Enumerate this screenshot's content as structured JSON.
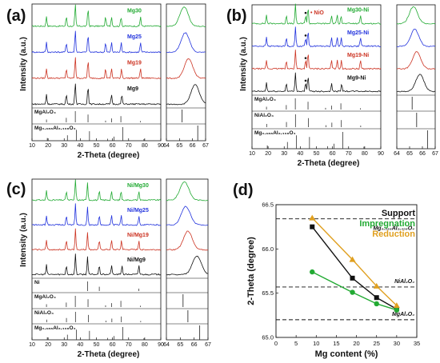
{
  "colors": {
    "black": "#111111",
    "blue": "#2233dd",
    "green": "#22aa33",
    "red": "#cc3322",
    "orange": "#e0a020",
    "ref": "#555555"
  },
  "chart_data": [
    {
      "type": "line",
      "panel_label": "(a)",
      "xlabel": "2-Theta (degree)",
      "ylabel": "Intensity (a.u.)",
      "xlim": [
        10,
        90
      ],
      "xticks": [
        "10",
        "20",
        "30",
        "40",
        "50",
        "60",
        "70",
        "80",
        "90"
      ],
      "zoom_xlim": [
        64,
        67
      ],
      "zoom_xticks": [
        "64",
        "65",
        "66",
        "67"
      ],
      "series": [
        {
          "name": "Mg30",
          "peaks": [
            19,
            31.3,
            36.9,
            44.8,
            55.7,
            59.4,
            65.3,
            77.4
          ],
          "zoom_peak": 65.35
        },
        {
          "name": "Mg25",
          "peaks": [
            19,
            31.3,
            36.9,
            44.8,
            55.7,
            59.4,
            65.4,
            77.4
          ],
          "zoom_peak": 65.45
        },
        {
          "name": "Mg19",
          "peaks": [
            19,
            31.3,
            36.9,
            44.8,
            55.7,
            59.4,
            65.6,
            77.4
          ],
          "zoom_peak": 65.7
        },
        {
          "name": "Mg9",
          "peaks": [
            19,
            31.3,
            36.9,
            44.8,
            59.4,
            65.8
          ],
          "zoom_peak": 66.2
        }
      ],
      "references": [
        {
          "label": "MgAl₂O₄",
          "lines": [
            19,
            31.3,
            36.9,
            44.8,
            55.7,
            59.4,
            65.2,
            77.3
          ],
          "heights": [
            0.25,
            0.4,
            1,
            0.7,
            0.15,
            0.35,
            0.55,
            0.12
          ],
          "zoom_line": 65.2
        },
        {
          "label": "Mg₀.₃₈₈Al₂.₄₀₈O₄",
          "lines": [
            19.5,
            32,
            37.6,
            45.7,
            57,
            60.9,
            66.4,
            79.5
          ],
          "heights": [
            0.2,
            0.4,
            0.8,
            0.7,
            0.15,
            0.3,
            1,
            0.12
          ],
          "zoom_line": 66.4
        }
      ]
    },
    {
      "type": "line",
      "panel_label": "(b)",
      "xlabel": "2-Theta (degree)",
      "ylabel": "Intensity (a.u.)",
      "xlim": [
        10,
        90
      ],
      "xticks": [
        "10",
        "20",
        "30",
        "40",
        "50",
        "60",
        "70",
        "80",
        "90"
      ],
      "zoom_xlim": [
        64,
        67
      ],
      "zoom_xticks": [
        "64",
        "65",
        "66",
        "67"
      ],
      "annotation": "• NiO",
      "series": [
        {
          "name": "Mg30-Ni",
          "peaks": [
            19,
            31.3,
            37,
            43.3,
            44.8,
            59.4,
            62.9,
            65.3,
            77.4
          ],
          "zoom_peak": 65.3
        },
        {
          "name": "Mg25-Ni",
          "peaks": [
            19,
            31.3,
            37,
            43.3,
            44.8,
            59.4,
            62.9,
            65.4,
            77.4
          ],
          "zoom_peak": 65.4
        },
        {
          "name": "Mg19-Ni",
          "peaks": [
            19,
            31.3,
            37,
            43.3,
            44.8,
            59.4,
            62.9,
            65.5,
            77.4
          ],
          "zoom_peak": 65.55
        },
        {
          "name": "Mg9-Ni",
          "peaks": [
            19,
            31.3,
            37,
            43.3,
            44.8,
            59.4,
            65.7
          ],
          "zoom_peak": 65.8
        }
      ],
      "references": [
        {
          "label": "MgAl₂O₄",
          "lines": [
            19,
            31.3,
            36.9,
            44.8,
            55.7,
            59.4,
            65.2,
            77.3
          ],
          "heights": [
            0.25,
            0.4,
            1,
            0.7,
            0.15,
            0.35,
            0.55,
            0.12
          ],
          "zoom_line": 65.2
        },
        {
          "label": "NiAl₂O₄",
          "lines": [
            19.1,
            31.4,
            37,
            45,
            55.9,
            59.6,
            65.5,
            77.5
          ],
          "heights": [
            0.25,
            0.4,
            1,
            0.7,
            0.15,
            0.35,
            0.55,
            0.12
          ],
          "zoom_line": 65.55
        },
        {
          "label": "Mg₀.₃₈₈Al₂.₄₀₈O₄",
          "lines": [
            19.5,
            32,
            37.6,
            45.7,
            57,
            60.9,
            66.4,
            79.5
          ],
          "heights": [
            0.2,
            0.4,
            0.8,
            0.7,
            0.15,
            0.3,
            1,
            0.12
          ],
          "zoom_line": 66.4
        }
      ]
    },
    {
      "type": "line",
      "panel_label": "(c)",
      "xlabel": "2-Theta (degree)",
      "ylabel": "Intensity (a.u.)",
      "xlim": [
        10,
        90
      ],
      "xticks": [
        "10",
        "20",
        "30",
        "40",
        "50",
        "60",
        "70",
        "80",
        "90"
      ],
      "zoom_xlim": [
        64,
        67
      ],
      "zoom_xticks": [
        "64",
        "65",
        "66",
        "67"
      ],
      "series": [
        {
          "name": "Ni/Mg30",
          "peaks": [
            19,
            31.3,
            37,
            44.5,
            51.8,
            59.4,
            65.3,
            76.4
          ],
          "zoom_peak": 65.3
        },
        {
          "name": "Ni/Mg25",
          "peaks": [
            19,
            31.3,
            37,
            44.5,
            51.8,
            59.4,
            65.4,
            76.4
          ],
          "zoom_peak": 65.4
        },
        {
          "name": "Ni/Mg19",
          "peaks": [
            19,
            31.3,
            37,
            44.5,
            51.8,
            59.4,
            65.6,
            76.4
          ],
          "zoom_peak": 65.55
        },
        {
          "name": "Ni/Mg9",
          "peaks": [
            19,
            31.3,
            37,
            44.5,
            51.8,
            59.4,
            65.9,
            76.4
          ],
          "zoom_peak": 66.2
        }
      ],
      "references": [
        {
          "label": "Ni",
          "lines": [
            44.5,
            51.8,
            76.4
          ],
          "heights": [
            1,
            0.45,
            0.25
          ],
          "zoom_line": null
        },
        {
          "label": "MgAl₂O₄",
          "lines": [
            19,
            31.3,
            36.9,
            44.8,
            55.7,
            59.4,
            65.2,
            77.3
          ],
          "heights": [
            0.25,
            0.4,
            1,
            0.7,
            0.15,
            0.35,
            0.55,
            0.12
          ],
          "zoom_line": 65.2
        },
        {
          "label": "NiAl₂O₄",
          "lines": [
            19.1,
            31.4,
            37,
            45,
            55.9,
            59.6,
            65.5,
            77.5
          ],
          "heights": [
            0.25,
            0.4,
            1,
            0.7,
            0.15,
            0.35,
            0.55,
            0.12
          ],
          "zoom_line": 65.55
        },
        {
          "label": "Mg₀.₃₈₈Al₂.₄₀₈O₄",
          "lines": [
            19.5,
            32,
            37.6,
            45.7,
            57,
            60.9,
            66.4,
            79.5
          ],
          "heights": [
            0.2,
            0.4,
            0.8,
            0.7,
            0.15,
            0.3,
            1,
            0.12
          ],
          "zoom_line": 66.4
        }
      ]
    },
    {
      "type": "scatter",
      "panel_label": "(d)",
      "xlabel": "Mg content (%)",
      "ylabel": "2-Theta (degree)",
      "xlim": [
        0,
        35
      ],
      "ylim": [
        65.0,
        66.5
      ],
      "xticks": [
        "0",
        "5",
        "10",
        "15",
        "20",
        "25",
        "30",
        "35"
      ],
      "yticks": [
        "65.0",
        "65.5",
        "66.0",
        "66.5"
      ],
      "x": [
        9,
        19,
        25,
        30
      ],
      "series": [
        {
          "name": "Support",
          "marker": "square",
          "values": [
            66.25,
            65.67,
            65.45,
            65.32
          ]
        },
        {
          "name": "Impregnation",
          "marker": "circle",
          "values": [
            65.74,
            65.51,
            65.38,
            65.31
          ]
        },
        {
          "name": "Reduction",
          "marker": "triangle",
          "values": [
            66.35,
            65.88,
            65.58,
            65.36
          ]
        }
      ],
      "reference_lines": [
        {
          "label": "Mg₀.₃₈₈Al₂.₄₀₈O₄",
          "y": 66.34
        },
        {
          "label": "NiAl₂O₄",
          "y": 65.57
        },
        {
          "label": "MgAl₂O₄",
          "y": 65.2
        }
      ]
    }
  ]
}
